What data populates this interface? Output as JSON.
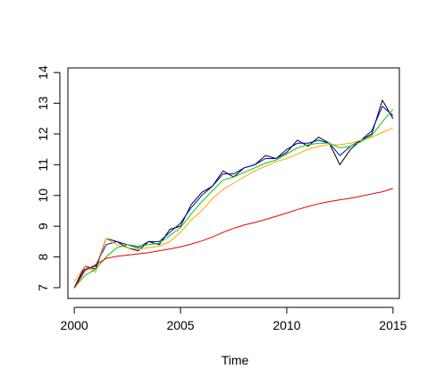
{
  "chart_data": {
    "type": "line",
    "title": "",
    "xlabel": "Time",
    "ylabel": "",
    "xlim": [
      1999.7,
      2015.3
    ],
    "ylim": [
      6.65,
      14.15
    ],
    "xticks": [
      2000,
      2005,
      2010,
      2015
    ],
    "yticks": [
      7,
      8,
      9,
      10,
      11,
      12,
      13,
      14
    ],
    "grid": false,
    "series": [
      {
        "color": "#000000",
        "x": [
          2000.0,
          2000.5,
          2001.0,
          2001.5,
          2002.0,
          2002.5,
          2003.0,
          2003.5,
          2004.0,
          2004.5,
          2005.0,
          2005.5,
          2006.0,
          2006.5,
          2007.0,
          2007.5,
          2008.0,
          2008.5,
          2009.0,
          2009.5,
          2010.0,
          2010.5,
          2011.0,
          2011.5,
          2012.0,
          2012.5,
          2013.0,
          2013.5,
          2014.0,
          2014.5,
          2015.0
        ],
        "y": [
          7.0,
          7.7,
          7.6,
          8.6,
          8.5,
          8.3,
          8.2,
          8.5,
          8.4,
          8.9,
          9.0,
          9.7,
          10.1,
          10.3,
          10.8,
          10.6,
          10.9,
          11.0,
          11.3,
          11.2,
          11.4,
          11.8,
          11.6,
          11.9,
          11.7,
          11.0,
          11.5,
          11.8,
          12.0,
          13.1,
          12.5
        ]
      },
      {
        "color": "#0000cd",
        "x": [
          2000.0,
          2000.5,
          2001.0,
          2001.5,
          2002.0,
          2002.5,
          2003.0,
          2003.5,
          2004.0,
          2004.5,
          2005.0,
          2005.5,
          2006.0,
          2006.5,
          2007.0,
          2007.5,
          2008.0,
          2008.5,
          2009.0,
          2009.5,
          2010.0,
          2010.5,
          2011.0,
          2011.5,
          2012.0,
          2012.5,
          2013.0,
          2013.5,
          2014.0,
          2014.5,
          2015.0
        ],
        "y": [
          7.0,
          7.6,
          7.7,
          8.4,
          8.5,
          8.4,
          8.3,
          8.5,
          8.5,
          8.8,
          9.1,
          9.6,
          10.0,
          10.3,
          10.7,
          10.7,
          10.9,
          11.0,
          11.2,
          11.2,
          11.5,
          11.7,
          11.7,
          11.8,
          11.7,
          11.3,
          11.6,
          11.8,
          12.1,
          12.9,
          12.6
        ]
      },
      {
        "color": "#ffa500",
        "x": [
          2000.0,
          2000.5,
          2001.0,
          2001.5,
          2002.0,
          2002.5,
          2003.0,
          2003.5,
          2004.0,
          2004.5,
          2005.0,
          2005.5,
          2006.0,
          2006.5,
          2007.0,
          2007.5,
          2008.0,
          2008.5,
          2009.0,
          2009.5,
          2010.0,
          2010.5,
          2011.0,
          2011.5,
          2012.0,
          2012.5,
          2013.0,
          2013.5,
          2014.0,
          2014.5,
          2015.0
        ],
        "y": [
          7.2,
          7.7,
          7.5,
          8.6,
          8.4,
          8.3,
          8.25,
          8.3,
          8.35,
          8.5,
          8.8,
          9.2,
          9.5,
          9.9,
          10.2,
          10.4,
          10.6,
          10.8,
          10.95,
          11.1,
          11.2,
          11.35,
          11.5,
          11.6,
          11.65,
          11.65,
          11.7,
          11.8,
          11.9,
          12.05,
          12.2
        ]
      },
      {
        "color": "#00cd00",
        "x": [
          2000.0,
          2000.5,
          2001.0,
          2001.5,
          2002.0,
          2002.5,
          2003.0,
          2003.5,
          2004.0,
          2004.5,
          2005.0,
          2005.5,
          2006.0,
          2006.5,
          2007.0,
          2007.5,
          2008.0,
          2008.5,
          2009.0,
          2009.5,
          2010.0,
          2010.5,
          2011.0,
          2011.5,
          2012.0,
          2012.5,
          2013.0,
          2013.5,
          2014.0,
          2014.5,
          2015.0
        ],
        "y": [
          7.0,
          7.4,
          7.6,
          8.0,
          8.3,
          8.4,
          8.35,
          8.4,
          8.45,
          8.7,
          8.95,
          9.4,
          9.8,
          10.15,
          10.5,
          10.6,
          10.75,
          10.9,
          11.05,
          11.15,
          11.35,
          11.55,
          11.65,
          11.7,
          11.7,
          11.55,
          11.6,
          11.75,
          11.95,
          12.4,
          12.8
        ]
      },
      {
        "color": "#ee0000",
        "x": [
          2000.0,
          2000.5,
          2001.0,
          2001.5,
          2002.0,
          2002.5,
          2003.0,
          2003.5,
          2004.0,
          2004.5,
          2005.0,
          2005.5,
          2006.0,
          2006.5,
          2007.0,
          2007.5,
          2008.0,
          2008.5,
          2009.0,
          2009.5,
          2010.0,
          2010.5,
          2011.0,
          2011.5,
          2012.0,
          2012.5,
          2013.0,
          2013.5,
          2014.0,
          2014.5,
          2015.0
        ],
        "y": [
          6.98,
          7.55,
          7.75,
          7.95,
          8.02,
          8.06,
          8.1,
          8.14,
          8.2,
          8.26,
          8.33,
          8.42,
          8.52,
          8.65,
          8.8,
          8.93,
          9.04,
          9.12,
          9.22,
          9.32,
          9.43,
          9.54,
          9.64,
          9.73,
          9.8,
          9.86,
          9.91,
          9.98,
          10.05,
          10.12,
          10.23
        ]
      }
    ]
  }
}
